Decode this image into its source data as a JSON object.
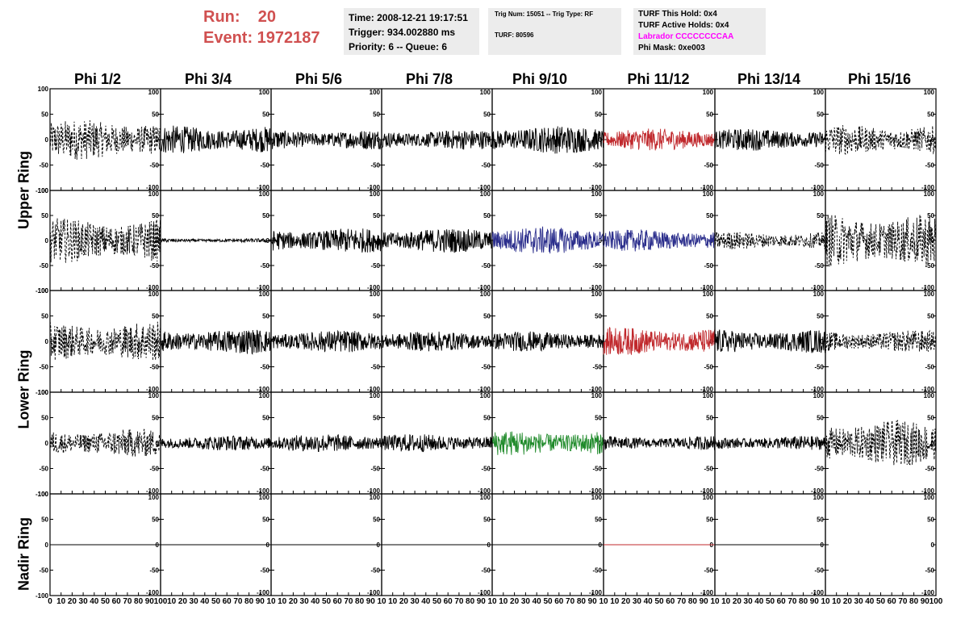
{
  "run_info": {
    "run_label": "Run:    20",
    "event_label": "Event: 1972187"
  },
  "time_box": {
    "time": "Time: 2008-12-21 19:17:51",
    "trigger": "Trigger: 934.002880 ms",
    "priority": "Priority: 6 -- Queue: 6"
  },
  "trig_box": {
    "trig_num": "Trig Num: 15051 -- Trig Type: RF",
    "turf": "TURF: 80596"
  },
  "turf_box": {
    "this_hold": "TURF This Hold: 0x4",
    "active_holds": "TURF Active Holds: 0x4",
    "labrador": "Labrador CCCCCCCCAA",
    "phi_mask": "Phi Mask: 0xe003"
  },
  "columns": [
    "Phi 1/2",
    "Phi 3/4",
    "Phi 5/6",
    "Phi 7/8",
    "Phi 9/10",
    "Phi 11/12",
    "Phi 13/14",
    "Phi 15/16"
  ],
  "ring_labels": {
    "upper": "Upper Ring",
    "lower": "Lower Ring",
    "nadir": "Nadir Ring"
  },
  "colors": {
    "black": "#000000",
    "red": "#c0282c",
    "blue": "#2b2e8c",
    "green": "#1f8a2a",
    "accent_text": "#d05050",
    "magenta": "#ff00ff",
    "box_bg": "#ececec"
  },
  "chart_data": {
    "type": "line",
    "xlim": [
      0,
      100
    ],
    "ylim": [
      -100,
      100
    ],
    "y_ticks": [
      "100",
      "50",
      "0",
      "-50",
      "-100"
    ],
    "x_ticks_first": [
      "0",
      "10",
      "20",
      "30",
      "40",
      "50",
      "60",
      "70",
      "80",
      "90",
      "100"
    ],
    "x_ticks_inner": [
      "10",
      "20",
      "30",
      "40",
      "50",
      "60",
      "70",
      "80",
      "90",
      "10"
    ],
    "x_ticks_last": [
      "10",
      "20",
      "30",
      "40",
      "50",
      "60",
      "70",
      "80",
      "90",
      "100"
    ],
    "rows": [
      {
        "ring": "upper",
        "cells": [
          {
            "amp": 40,
            "style": "dashed",
            "color": "black"
          },
          {
            "amp": 28,
            "style": "solid",
            "color": "black"
          },
          {
            "amp": 20,
            "style": "solid",
            "color": "black"
          },
          {
            "amp": 20,
            "style": "solid",
            "color": "black"
          },
          {
            "amp": 28,
            "style": "solid",
            "color": "black"
          },
          {
            "amp": 22,
            "style": "solid",
            "color": "red"
          },
          {
            "amp": 22,
            "style": "solid",
            "color": "black"
          },
          {
            "amp": 30,
            "style": "dashed",
            "color": "black"
          }
        ]
      },
      {
        "ring": "upper",
        "cells": [
          {
            "amp": 45,
            "style": "dashed",
            "color": "black"
          },
          {
            "amp": 4,
            "style": "solid",
            "color": "black"
          },
          {
            "amp": 25,
            "style": "solid",
            "color": "black"
          },
          {
            "amp": 25,
            "style": "solid",
            "color": "black"
          },
          {
            "amp": 28,
            "style": "solid",
            "color": "blue"
          },
          {
            "amp": 22,
            "style": "solid",
            "color": "blue"
          },
          {
            "amp": 18,
            "style": "dashed",
            "color": "black"
          },
          {
            "amp": 55,
            "style": "dashed",
            "color": "black"
          }
        ]
      },
      {
        "ring": "lower",
        "cells": [
          {
            "amp": 40,
            "style": "dashed",
            "color": "black"
          },
          {
            "amp": 25,
            "style": "solid",
            "color": "black"
          },
          {
            "amp": 22,
            "style": "solid",
            "color": "black"
          },
          {
            "amp": 20,
            "style": "solid",
            "color": "black"
          },
          {
            "amp": 20,
            "style": "solid",
            "color": "black"
          },
          {
            "amp": 28,
            "style": "solid",
            "color": "red"
          },
          {
            "amp": 24,
            "style": "solid",
            "color": "black"
          },
          {
            "amp": 22,
            "style": "dashed",
            "color": "black"
          }
        ]
      },
      {
        "ring": "lower",
        "cells": [
          {
            "amp": 28,
            "style": "dashed",
            "color": "black"
          },
          {
            "amp": 15,
            "style": "solid",
            "color": "black"
          },
          {
            "amp": 18,
            "style": "solid",
            "color": "black"
          },
          {
            "amp": 18,
            "style": "solid",
            "color": "black"
          },
          {
            "amp": 25,
            "style": "solid",
            "color": "green"
          },
          {
            "amp": 14,
            "style": "solid",
            "color": "black"
          },
          {
            "amp": 14,
            "style": "solid",
            "color": "black"
          },
          {
            "amp": 45,
            "style": "dashed",
            "color": "black"
          }
        ]
      },
      {
        "ring": "nadir",
        "cells": [
          {
            "amp": 0,
            "style": "solid",
            "color": "black"
          },
          {
            "amp": 0,
            "style": "solid",
            "color": "black"
          },
          {
            "amp": 0,
            "style": "solid",
            "color": "black"
          },
          {
            "amp": 0,
            "style": "solid",
            "color": "black"
          },
          {
            "amp": 0,
            "style": "solid",
            "color": "black"
          },
          {
            "amp": 0,
            "style": "solid",
            "color": "red"
          },
          {
            "amp": 0,
            "style": "solid",
            "color": "black"
          },
          {
            "amp": null,
            "style": "none",
            "color": "black"
          }
        ]
      }
    ]
  }
}
